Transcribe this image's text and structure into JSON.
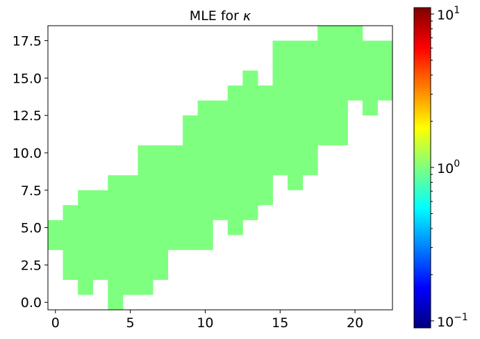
{
  "chart_data": {
    "type": "heatmap",
    "title_prefix": "MLE for ",
    "title_symbol": "κ",
    "xlabel": "",
    "ylabel": "",
    "xlim": [
      -0.5,
      22.5
    ],
    "ylim": [
      -0.5,
      18.5
    ],
    "xticks": [
      {
        "value": 0,
        "label": "0"
      },
      {
        "value": 5,
        "label": "5"
      },
      {
        "value": 10,
        "label": "10"
      },
      {
        "value": 15,
        "label": "15"
      },
      {
        "value": 20,
        "label": "20"
      }
    ],
    "yticks": [
      {
        "value": 0.0,
        "label": "0.0"
      },
      {
        "value": 2.5,
        "label": "2.5"
      },
      {
        "value": 5.0,
        "label": "5.0"
      },
      {
        "value": 7.5,
        "label": "7.5"
      },
      {
        "value": 10.0,
        "label": "10.0"
      },
      {
        "value": 12.5,
        "label": "12.5"
      },
      {
        "value": 15.0,
        "label": "15.0"
      },
      {
        "value": 17.5,
        "label": "17.5"
      }
    ],
    "cell_value": 1.0,
    "cell_color": "#7fff7f",
    "columns": [
      {
        "x": 0,
        "y_ranges": [
          [
            4,
            5
          ]
        ]
      },
      {
        "x": 1,
        "y_ranges": [
          [
            2,
            6
          ]
        ]
      },
      {
        "x": 2,
        "y_ranges": [
          [
            1,
            7
          ]
        ]
      },
      {
        "x": 3,
        "y_ranges": [
          [
            2,
            7
          ]
        ]
      },
      {
        "x": 4,
        "y_ranges": [
          [
            0,
            8
          ]
        ]
      },
      {
        "x": 5,
        "y_ranges": [
          [
            1,
            8
          ]
        ]
      },
      {
        "x": 6,
        "y_ranges": [
          [
            1,
            10
          ]
        ]
      },
      {
        "x": 7,
        "y_ranges": [
          [
            2,
            10
          ]
        ]
      },
      {
        "x": 8,
        "y_ranges": [
          [
            4,
            10
          ]
        ]
      },
      {
        "x": 9,
        "y_ranges": [
          [
            4,
            12
          ]
        ]
      },
      {
        "x": 10,
        "y_ranges": [
          [
            4,
            13
          ]
        ]
      },
      {
        "x": 11,
        "y_ranges": [
          [
            6,
            13
          ]
        ]
      },
      {
        "x": 12,
        "y_ranges": [
          [
            5,
            14
          ]
        ]
      },
      {
        "x": 13,
        "y_ranges": [
          [
            6,
            15
          ]
        ]
      },
      {
        "x": 14,
        "y_ranges": [
          [
            7,
            14
          ]
        ]
      },
      {
        "x": 15,
        "y_ranges": [
          [
            9,
            17
          ]
        ]
      },
      {
        "x": 16,
        "y_ranges": [
          [
            8,
            17
          ]
        ]
      },
      {
        "x": 17,
        "y_ranges": [
          [
            9,
            17
          ]
        ]
      },
      {
        "x": 18,
        "y_ranges": [
          [
            11,
            18
          ]
        ]
      },
      {
        "x": 19,
        "y_ranges": [
          [
            11,
            18
          ]
        ]
      },
      {
        "x": 20,
        "y_ranges": [
          [
            14,
            18
          ]
        ]
      },
      {
        "x": 21,
        "y_ranges": [
          [
            13,
            17
          ]
        ]
      },
      {
        "x": 22,
        "y_ranges": [
          [
            14,
            17
          ]
        ]
      }
    ],
    "colorbar": {
      "scale": "log",
      "min": 0.09,
      "max": 11,
      "colormap": [
        "#00007f",
        "#0000ff",
        "#007fff",
        "#00ffff",
        "#7fff7f",
        "#ffff00",
        "#ff7f00",
        "#ff0000",
        "#7f0000"
      ],
      "major_ticks": [
        {
          "value": 0.1,
          "base": "10",
          "exponent": "−1"
        },
        {
          "value": 1,
          "base": "10",
          "exponent": "0"
        },
        {
          "value": 10,
          "base": "10",
          "exponent": "1"
        }
      ]
    }
  }
}
